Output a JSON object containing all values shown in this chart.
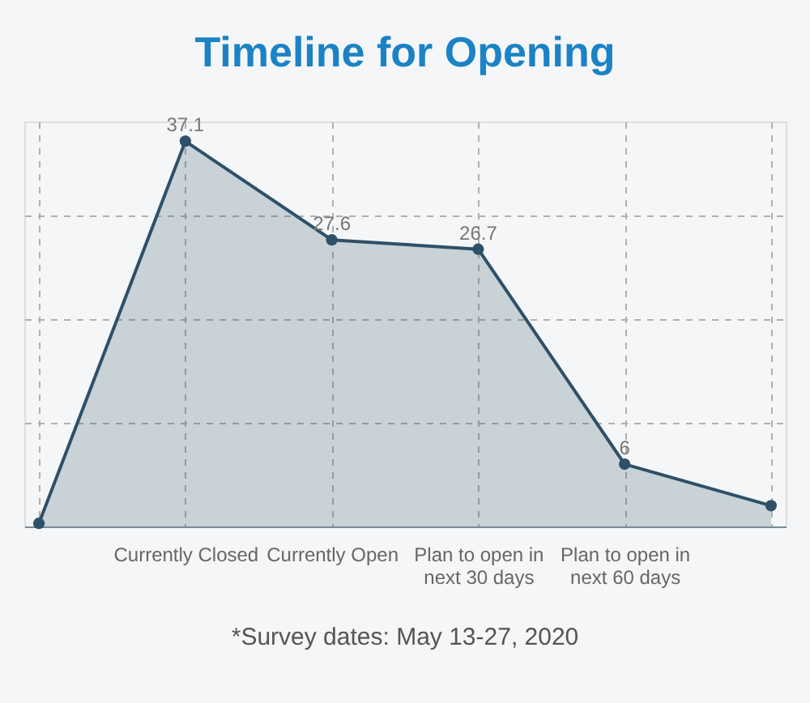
{
  "chart_data": {
    "type": "area",
    "title": "Timeline for Opening",
    "categories": [
      null,
      "Currently Closed",
      "Currently Open",
      "Plan to open in\nnext 30 days",
      "Plan to open in\nnext 60 days",
      null
    ],
    "series": [
      {
        "color": "#2e5069",
        "values": [
          0.3,
          37.1,
          27.6,
          26.7,
          6,
          2
        ],
        "value_labels": [
          null,
          "37.1",
          "27.6",
          "26.7",
          "6",
          null
        ]
      }
    ],
    "ylim": [
      0,
      39
    ],
    "yticks": [
      {
        "value": 10,
        "label": null
      },
      {
        "value": 20,
        "label": null
      },
      {
        "value": 30,
        "label": null
      }
    ],
    "tick_labels": "x",
    "grid": true,
    "marker": "circle",
    "line_style": "solid",
    "annotations": [
      "*Survey dates: May 13-27, 2020"
    ]
  }
}
